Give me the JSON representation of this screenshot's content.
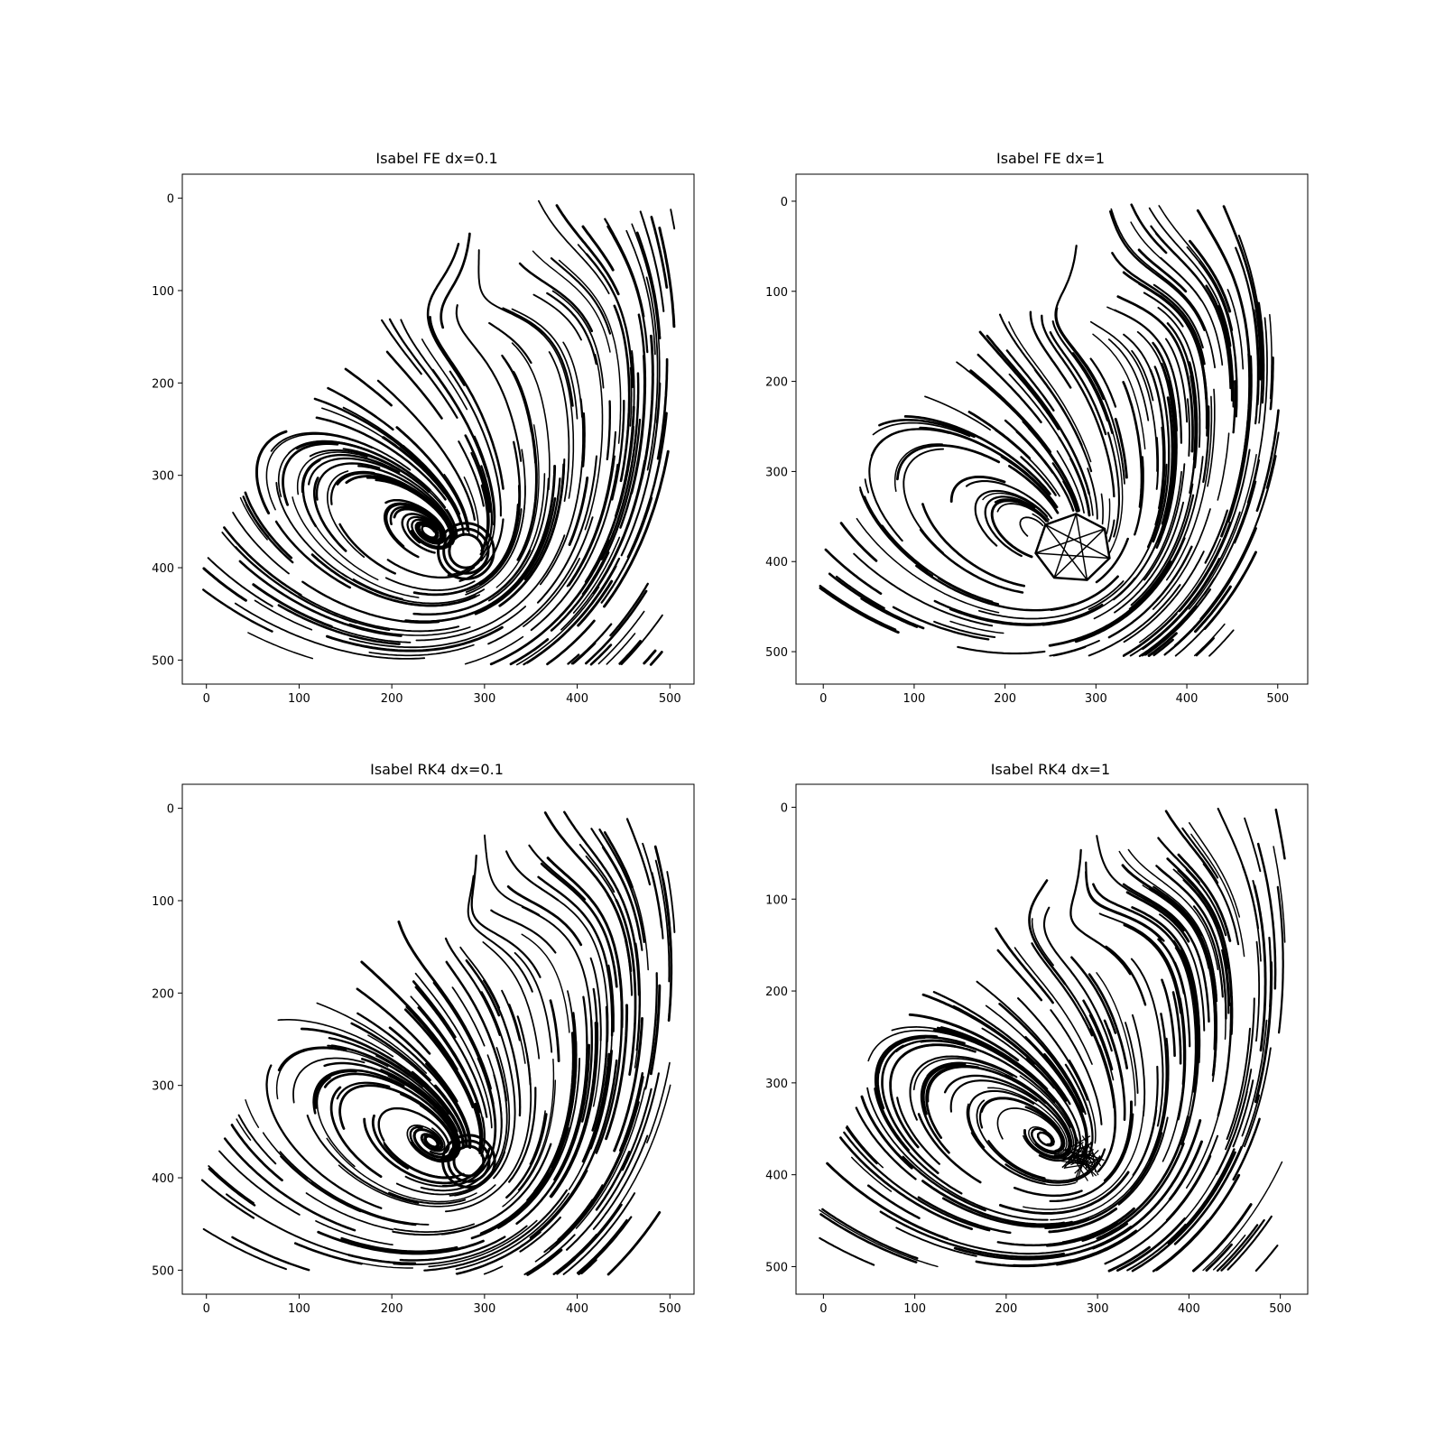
{
  "chart_data": [
    {
      "type": "streamline",
      "title": "Isabel FE dx=0.1",
      "xlabel": "",
      "ylabel": "",
      "xlim": [
        -26,
        526
      ],
      "ylim": [
        526,
        -26
      ],
      "y_inverted": true,
      "xticks": [
        0,
        100,
        200,
        300,
        400,
        500
      ],
      "yticks": [
        0,
        100,
        200,
        300,
        400,
        500
      ],
      "grid": false,
      "line_color": "#000000",
      "vortex_center": [
        280,
        382
      ],
      "saddle_point": [
        318,
        55
      ],
      "core_hole_radius": 14,
      "core_style": "spiral"
    },
    {
      "type": "streamline",
      "title": "Isabel FE dx=1",
      "xlabel": "",
      "ylabel": "",
      "xlim": [
        -30,
        533
      ],
      "ylim": [
        536,
        -30
      ],
      "y_inverted": true,
      "xticks": [
        0,
        100,
        200,
        300,
        400,
        500
      ],
      "yticks": [
        0,
        100,
        200,
        300,
        400,
        500
      ],
      "grid": false,
      "line_color": "#000000",
      "vortex_center": [
        275,
        385
      ],
      "saddle_point": [
        310,
        55
      ],
      "core_hole_radius": 38,
      "core_style": "polygon"
    },
    {
      "type": "streamline",
      "title": "Isabel RK4 dx=0.1",
      "xlabel": "",
      "ylabel": "",
      "xlim": [
        -26,
        526
      ],
      "ylim": [
        526,
        -26
      ],
      "y_inverted": true,
      "xticks": [
        0,
        100,
        200,
        300,
        400,
        500
      ],
      "yticks": [
        0,
        100,
        200,
        300,
        400,
        500
      ],
      "grid": false,
      "line_color": "#000000",
      "vortex_center": [
        283,
        382
      ],
      "saddle_point": [
        318,
        55
      ],
      "core_hole_radius": 12,
      "core_style": "spiral"
    },
    {
      "type": "streamline",
      "title": "Isabel RK4 dx=1",
      "xlabel": "",
      "ylabel": "",
      "xlim": [
        -30,
        530
      ],
      "ylim": [
        530,
        -25
      ],
      "y_inverted": true,
      "xticks": [
        0,
        100,
        200,
        300,
        400,
        500
      ],
      "yticks": [
        0,
        100,
        200,
        300,
        400,
        500
      ],
      "grid": false,
      "line_color": "#000000",
      "vortex_center": [
        283,
        382
      ],
      "saddle_point": [
        310,
        55
      ],
      "core_hole_radius": 0,
      "core_style": "tangle"
    }
  ]
}
